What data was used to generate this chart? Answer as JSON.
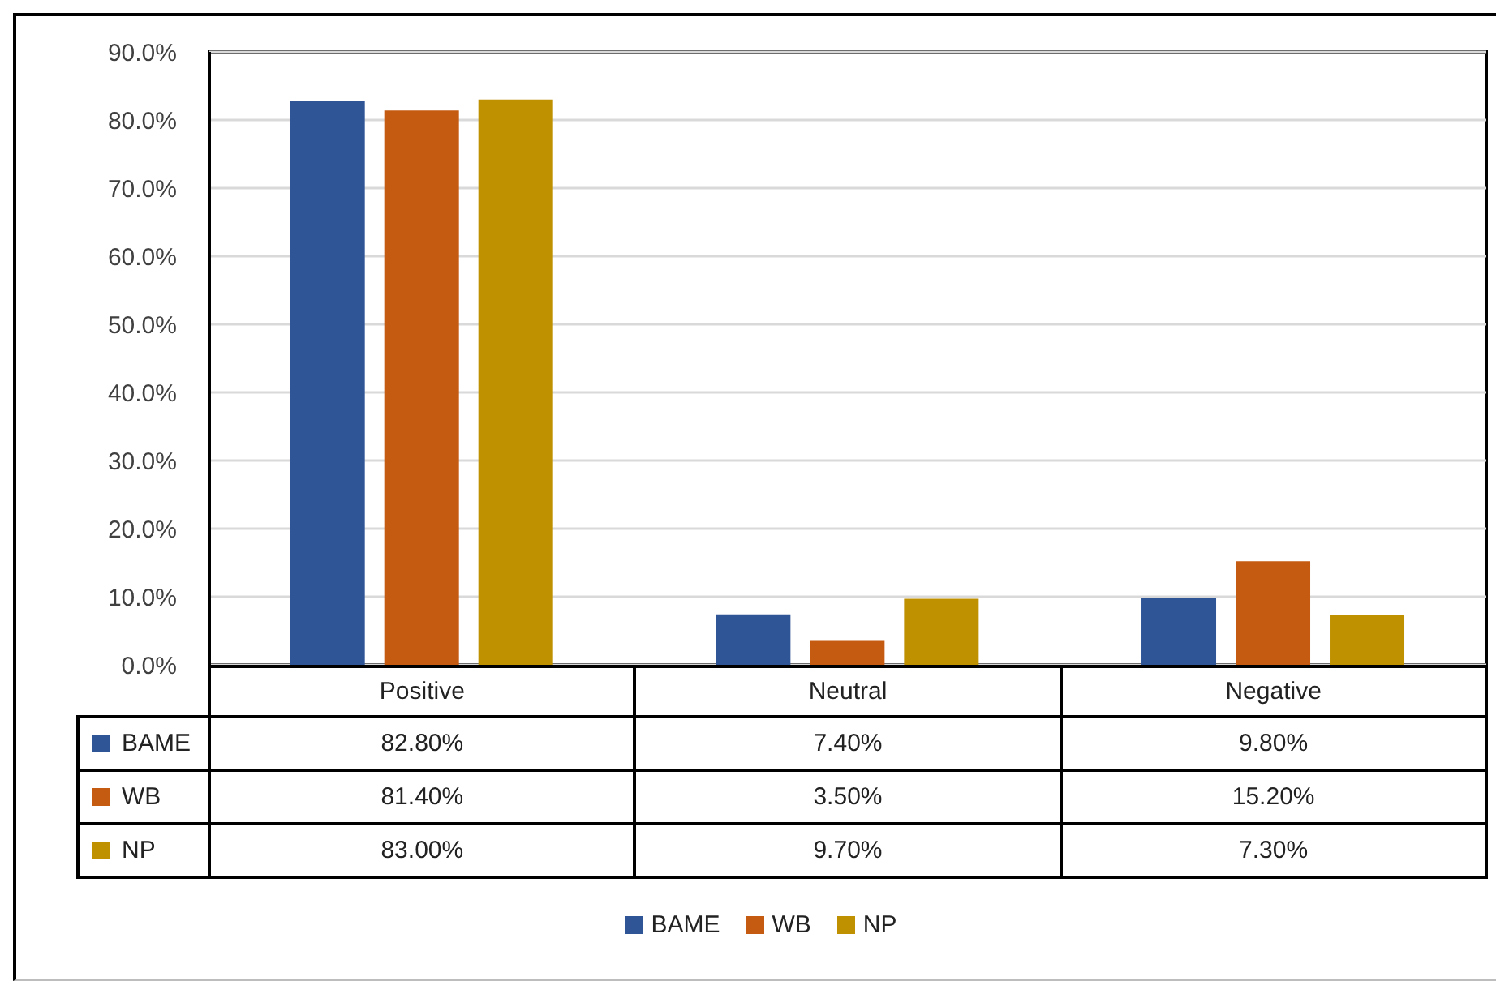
{
  "chart_data": {
    "type": "bar",
    "categories": [
      "Positive",
      "Neutral",
      "Negative"
    ],
    "series": [
      {
        "name": "BAME",
        "color": "#2f5597",
        "values": [
          82.8,
          7.4,
          9.8
        ],
        "value_labels": [
          "82.80%",
          "7.40%",
          "9.80%"
        ]
      },
      {
        "name": "WB",
        "color": "#c55a11",
        "values": [
          81.4,
          3.5,
          15.2
        ],
        "value_labels": [
          "81.40%",
          "3.50%",
          "15.20%"
        ]
      },
      {
        "name": "NP",
        "color": "#bf9000",
        "values": [
          83.0,
          9.7,
          7.3
        ],
        "value_labels": [
          "83.00%",
          "9.70%",
          "7.30%"
        ]
      }
    ],
    "ylim": [
      0,
      90
    ],
    "yticks": [
      {
        "value": 0,
        "label": "0.0%"
      },
      {
        "value": 10,
        "label": "10.0%"
      },
      {
        "value": 20,
        "label": "20.0%"
      },
      {
        "value": 30,
        "label": "30.0%"
      },
      {
        "value": 40,
        "label": "40.0%"
      },
      {
        "value": 50,
        "label": "50.0%"
      },
      {
        "value": 60,
        "label": "60.0%"
      },
      {
        "value": 70,
        "label": "70.0%"
      },
      {
        "value": 80,
        "label": "80.0%"
      },
      {
        "value": 90,
        "label": "90.0%"
      }
    ],
    "grid": "y",
    "legend": "bottom"
  }
}
